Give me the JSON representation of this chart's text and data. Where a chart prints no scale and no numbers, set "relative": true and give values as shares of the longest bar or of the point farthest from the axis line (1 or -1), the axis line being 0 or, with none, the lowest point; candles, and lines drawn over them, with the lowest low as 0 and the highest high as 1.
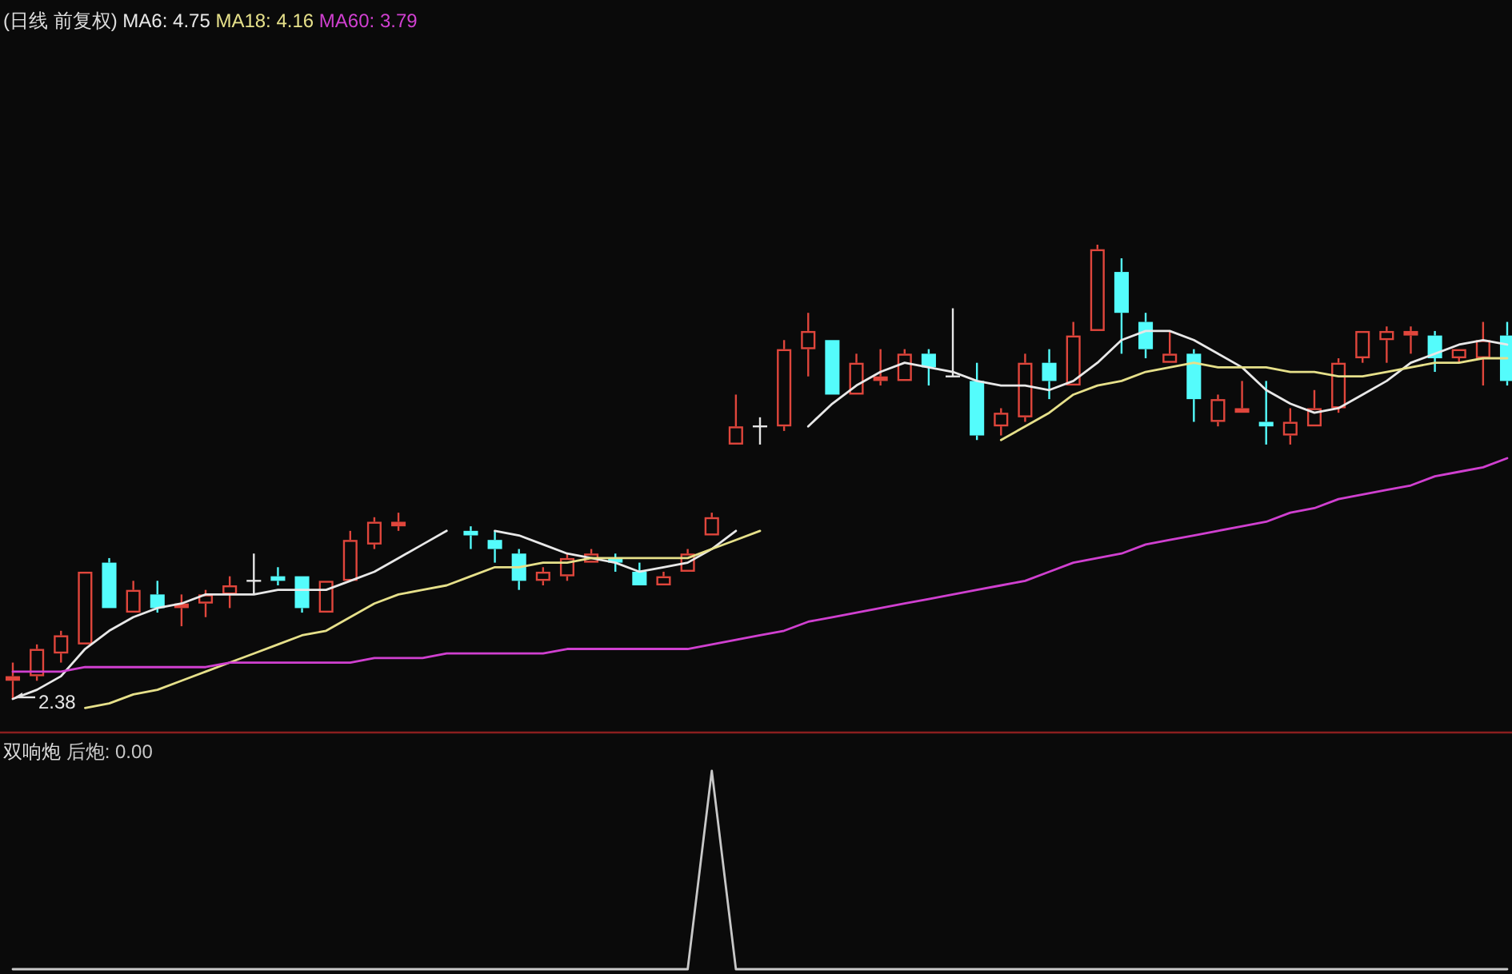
{
  "chart_data": [
    {
      "type": "candlestick",
      "title": "(日线 前复权)",
      "relative": true,
      "categories": [
        null,
        null,
        null,
        null,
        null,
        null,
        null,
        null,
        null,
        null,
        null,
        null,
        null,
        null,
        null,
        null,
        null,
        null,
        null,
        null,
        null,
        null,
        null,
        null,
        null,
        null,
        null,
        null,
        null,
        null,
        null,
        null,
        null,
        null,
        null,
        null,
        null,
        null,
        null,
        null,
        null,
        null,
        null,
        null,
        null,
        null,
        null,
        null,
        null,
        null,
        null,
        null,
        null,
        null,
        null,
        null,
        null,
        null,
        null,
        null,
        null,
        null,
        null
      ],
      "ohlc": [
        [
          0.04,
          0.08,
          0,
          0.05
        ],
        [
          0.05,
          0.12,
          0.04,
          0.11
        ],
        [
          0.1,
          0.15,
          0.08,
          0.14
        ],
        [
          0.12,
          0.28,
          0.12,
          0.28
        ],
        [
          0.3,
          0.31,
          0.2,
          0.2
        ],
        [
          0.19,
          0.26,
          0.19,
          0.24
        ],
        [
          0.23,
          0.26,
          0.19,
          0.2
        ],
        [
          0.2,
          0.23,
          0.16,
          0.21
        ],
        [
          0.21,
          0.24,
          0.18,
          0.23
        ],
        [
          0.23,
          0.27,
          0.2,
          0.25
        ],
        [
          0.26,
          0.32,
          0.23,
          0.26
        ],
        [
          0.27,
          0.29,
          0.25,
          0.26
        ],
        [
          0.27,
          0.27,
          0.19,
          0.2
        ],
        [
          0.19,
          0.26,
          0.19,
          0.26
        ],
        [
          0.26,
          0.37,
          0.26,
          0.35
        ],
        [
          0.34,
          0.4,
          0.33,
          0.39
        ],
        [
          0.38,
          0.41,
          0.37,
          0.39
        ],
        null,
        null,
        [
          0.37,
          0.38,
          0.33,
          0.36
        ],
        [
          0.35,
          0.37,
          0.3,
          0.33
        ],
        [
          0.32,
          0.33,
          0.24,
          0.26
        ],
        [
          0.26,
          0.29,
          0.25,
          0.28
        ],
        [
          0.27,
          0.32,
          0.26,
          0.31
        ],
        [
          0.3,
          0.33,
          0.3,
          0.32
        ],
        [
          0.31,
          0.32,
          0.28,
          0.3
        ],
        [
          0.28,
          0.3,
          0.25,
          0.25
        ],
        [
          0.25,
          0.28,
          0.25,
          0.27
        ],
        [
          0.28,
          0.33,
          0.28,
          0.32
        ],
        [
          0.36,
          0.41,
          0.36,
          0.4
        ],
        [
          0.56,
          0.67,
          0.56,
          0.6
        ],
        [
          0.6,
          0.62,
          0.56,
          0.6
        ],
        [
          0.6,
          0.79,
          0.59,
          0.77
        ],
        [
          0.77,
          0.85,
          0.71,
          0.81
        ],
        [
          0.79,
          0.79,
          0.67,
          0.67
        ],
        [
          0.67,
          0.76,
          0.67,
          0.74
        ],
        [
          0.7,
          0.77,
          0.69,
          0.71
        ],
        [
          0.7,
          0.77,
          0.7,
          0.76
        ],
        [
          0.76,
          0.77,
          0.69,
          0.73
        ],
        [
          0.71,
          0.86,
          0.71,
          0.71
        ],
        [
          0.7,
          0.74,
          0.57,
          0.58
        ],
        [
          0.6,
          0.64,
          0.58,
          0.63
        ],
        [
          0.62,
          0.76,
          0.61,
          0.74
        ],
        [
          0.74,
          0.77,
          0.66,
          0.7
        ],
        [
          0.69,
          0.83,
          0.69,
          0.8
        ],
        [
          0.81,
          1,
          0.81,
          0.99
        ],
        [
          0.94,
          0.97,
          0.76,
          0.85
        ],
        [
          0.83,
          0.85,
          0.75,
          0.77
        ],
        [
          0.74,
          0.81,
          0.74,
          0.76
        ],
        [
          0.76,
          0.77,
          0.61,
          0.66
        ],
        [
          0.61,
          0.67,
          0.6,
          0.66
        ],
        [
          0.63,
          0.7,
          0.63,
          0.64
        ],
        [
          0.61,
          0.7,
          0.56,
          0.6
        ],
        [
          0.58,
          0.64,
          0.56,
          0.61
        ],
        [
          0.6,
          0.68,
          0.6,
          0.64
        ],
        [
          0.64,
          0.75,
          0.63,
          0.74
        ],
        [
          0.75,
          0.81,
          0.74,
          0.81
        ],
        [
          0.79,
          0.82,
          0.74,
          0.81
        ],
        [
          0.8,
          0.82,
          0.76,
          0.81
        ],
        [
          0.8,
          0.81,
          0.72,
          0.75
        ],
        [
          0.75,
          0.77,
          0.74,
          0.77
        ],
        [
          0.75,
          0.83,
          0.69,
          0.79
        ],
        [
          0.8,
          0.83,
          0.69,
          0.7
        ]
      ],
      "colors": [
        "#e0463c",
        "#e0463c",
        "#e0463c",
        "#e0463c",
        "#54fcfc",
        "#e0463c",
        "#54fcfc",
        "#e0463c",
        "#e0463c",
        "#e0463c",
        "#e6e6e6",
        "#54fcfc",
        "#54fcfc",
        "#e0463c",
        "#e0463c",
        "#e0463c",
        "#e0463c",
        null,
        null,
        "#54fcfc",
        "#54fcfc",
        "#54fcfc",
        "#e0463c",
        "#e0463c",
        "#e0463c",
        "#54fcfc",
        "#54fcfc",
        "#e0463c",
        "#e0463c",
        "#e0463c",
        "#e0463c",
        "#e6e6e6",
        "#e0463c",
        "#e0463c",
        "#54fcfc",
        "#e0463c",
        "#e0463c",
        "#e0463c",
        "#54fcfc",
        "#e6e6e6",
        "#54fcfc",
        "#e0463c",
        "#e0463c",
        "#54fcfc",
        "#e0463c",
        "#e0463c",
        "#54fcfc",
        "#54fcfc",
        "#e0463c",
        "#54fcfc",
        "#e0463c",
        "#e0463c",
        "#54fcfc",
        "#e0463c",
        "#e0463c",
        "#e0463c",
        "#e0463c",
        "#e0463c",
        "#e0463c",
        "#54fcfc",
        "#e0463c",
        "#e0463c",
        "#54fcfc"
      ],
      "series": [
        {
          "type": "line",
          "name": "MA6: 4.75",
          "color": "#e8e8e8",
          "values": [
            0.0,
            0.02,
            0.05,
            0.11,
            0.15,
            0.18,
            0.2,
            0.21,
            0.23,
            0.23,
            0.23,
            0.24,
            0.24,
            0.24,
            0.26,
            0.28,
            0.31,
            0.34,
            0.37,
            null,
            0.37,
            0.36,
            0.34,
            0.32,
            0.31,
            0.3,
            0.28,
            0.29,
            0.3,
            0.33,
            0.37,
            null,
            null,
            0.6,
            0.65,
            0.69,
            0.72,
            0.74,
            0.73,
            0.72,
            0.7,
            0.69,
            0.69,
            0.68,
            0.7,
            0.74,
            0.79,
            0.81,
            0.81,
            0.79,
            0.76,
            0.73,
            0.68,
            0.65,
            0.63,
            0.64,
            0.67,
            0.7,
            0.74,
            0.76,
            0.78,
            0.79,
            0.78
          ]
        },
        {
          "type": "line",
          "name": "MA18: 4.16",
          "color": "#e6e08a",
          "values": [
            null,
            null,
            null,
            -0.02,
            -0.01,
            0.01,
            0.02,
            0.04,
            0.06,
            0.08,
            0.1,
            0.12,
            0.14,
            0.15,
            0.18,
            0.21,
            0.23,
            0.24,
            0.25,
            0.27,
            0.29,
            0.29,
            0.3,
            0.3,
            0.31,
            0.31,
            0.31,
            0.31,
            0.31,
            0.33,
            0.35,
            0.37,
            null,
            null,
            null,
            null,
            null,
            null,
            null,
            null,
            null,
            0.57,
            0.6,
            0.63,
            0.67,
            0.69,
            0.7,
            0.72,
            0.73,
            0.74,
            0.73,
            0.73,
            0.73,
            0.72,
            0.72,
            0.71,
            0.71,
            0.72,
            0.73,
            0.74,
            0.74,
            0.75,
            0.75
          ]
        },
        {
          "type": "line",
          "name": "MA60: 3.79",
          "color": "#d040d0",
          "values": [
            0.06,
            0.06,
            0.06,
            0.07,
            0.07,
            0.07,
            0.07,
            0.07,
            0.07,
            0.08,
            0.08,
            0.08,
            0.08,
            0.08,
            0.08,
            0.09,
            0.09,
            0.09,
            0.1,
            0.1,
            0.1,
            0.1,
            0.1,
            0.11,
            0.11,
            0.11,
            0.11,
            0.11,
            0.11,
            0.12,
            0.13,
            0.14,
            0.15,
            0.17,
            0.18,
            0.19,
            0.2,
            0.21,
            0.22,
            0.23,
            0.24,
            0.25,
            0.26,
            0.28,
            0.3,
            0.31,
            0.32,
            0.34,
            0.35,
            0.36,
            0.37,
            0.38,
            0.39,
            0.41,
            0.42,
            0.44,
            0.45,
            0.46,
            0.47,
            0.49,
            0.5,
            0.51,
            0.53
          ]
        }
      ],
      "annotations": [
        "2.38"
      ]
    },
    {
      "type": "line",
      "title": "双响炮",
      "relative": true,
      "categories": [
        null,
        null,
        null,
        null,
        null,
        null,
        null,
        null,
        null,
        null,
        null,
        null,
        null,
        null,
        null,
        null,
        null,
        null,
        null,
        null,
        null,
        null,
        null,
        null,
        null,
        null,
        null,
        null,
        null,
        null,
        null,
        null,
        null,
        null,
        null,
        null,
        null,
        null,
        null,
        null,
        null,
        null,
        null,
        null,
        null,
        null,
        null,
        null,
        null,
        null,
        null,
        null,
        null,
        null,
        null,
        null,
        null,
        null,
        null,
        null,
        null,
        null,
        null
      ],
      "series": [
        {
          "name": "后炮: 0.00",
          "color": "#c8c8c8",
          "values": [
            0,
            0,
            0,
            0,
            0,
            0,
            0,
            0,
            0,
            0,
            0,
            0,
            0,
            0,
            0,
            0,
            0,
            0,
            0,
            0,
            0,
            0,
            0,
            0,
            0,
            0,
            0,
            0,
            0,
            1,
            0,
            0,
            0,
            0,
            0,
            0,
            0,
            0,
            0,
            0,
            0,
            0,
            0,
            0,
            0,
            0,
            0,
            0,
            0,
            0,
            0,
            0,
            0,
            0,
            0,
            0,
            0,
            0,
            0,
            0,
            0,
            0,
            0
          ]
        }
      ]
    }
  ]
}
